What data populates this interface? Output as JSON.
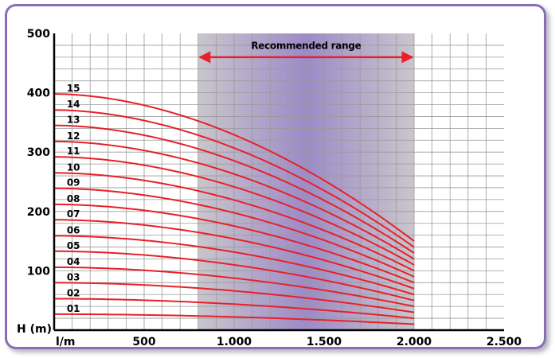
{
  "chart_data": {
    "type": "line",
    "title": "",
    "xlabel": "l/m",
    "ylabel": "H (m)",
    "xlim": [
      0,
      2500
    ],
    "ylim": [
      0,
      500
    ],
    "x_ticks": [
      500,
      1000,
      1500,
      2000,
      2500
    ],
    "x_tick_labels": [
      "500",
      "1.000",
      "1.500",
      "2.000",
      "2.500"
    ],
    "y_ticks": [
      100,
      200,
      300,
      400,
      500
    ],
    "y_tick_labels": [
      "100",
      "200",
      "300",
      "400",
      "500"
    ],
    "grid": true,
    "line_color": "#e8202a",
    "recommended_range": {
      "label": "Recommended range",
      "x_start": 800,
      "x_end": 2000
    },
    "curve_x_range": [
      0,
      2000
    ],
    "series": [
      {
        "name": "01",
        "start_head": 27,
        "end_head": 10
      },
      {
        "name": "02",
        "start_head": 53,
        "end_head": 20
      },
      {
        "name": "03",
        "start_head": 80,
        "end_head": 30
      },
      {
        "name": "04",
        "start_head": 106,
        "end_head": 40
      },
      {
        "name": "05",
        "start_head": 133,
        "end_head": 50
      },
      {
        "name": "06",
        "start_head": 159,
        "end_head": 60
      },
      {
        "name": "07",
        "start_head": 186,
        "end_head": 70
      },
      {
        "name": "08",
        "start_head": 212,
        "end_head": 80
      },
      {
        "name": "09",
        "start_head": 239,
        "end_head": 90
      },
      {
        "name": "10",
        "start_head": 265,
        "end_head": 100
      },
      {
        "name": "11",
        "start_head": 292,
        "end_head": 110
      },
      {
        "name": "12",
        "start_head": 318,
        "end_head": 120
      },
      {
        "name": "13",
        "start_head": 345,
        "end_head": 130
      },
      {
        "name": "14",
        "start_head": 371,
        "end_head": 140
      },
      {
        "name": "15",
        "start_head": 398,
        "end_head": 150
      }
    ]
  }
}
